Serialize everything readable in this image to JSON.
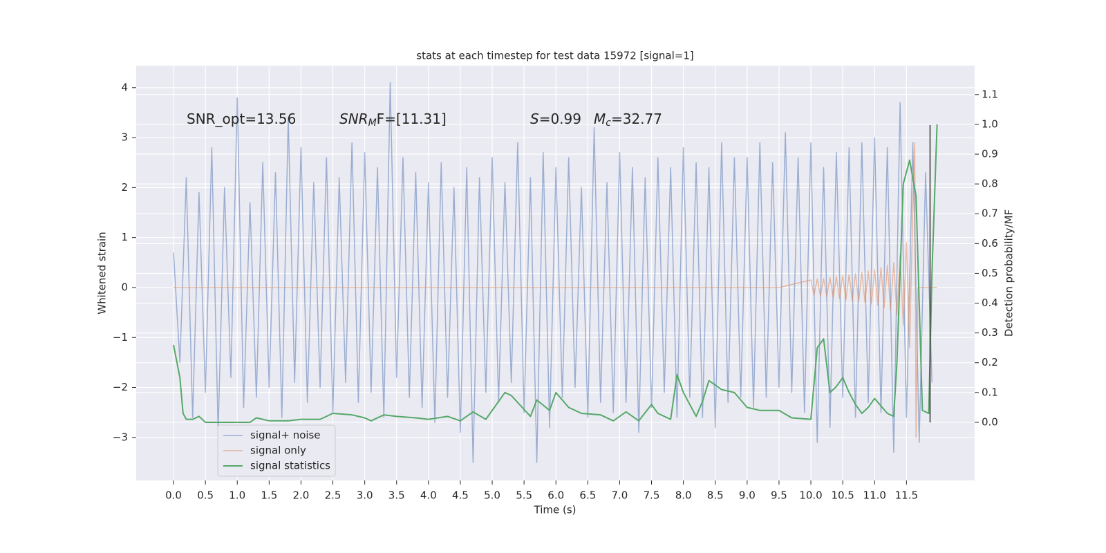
{
  "chart_data": {
    "type": "line",
    "title": "stats at each timestep for test data 15972 [signal=1]",
    "xlabel": "Time (s)",
    "ylabel": "Whitened strain",
    "y2label": "Detection probability/MF",
    "annotations": [
      {
        "text": "SNR_opt=13.56"
      },
      {
        "text": "SNR",
        "sub": "M",
        "after": "F=[11.31]"
      },
      {
        "text": "S",
        "after": "=0.99"
      },
      {
        "text": "M",
        "sub": "c",
        "after": "=32.77"
      }
    ],
    "xlim": [
      -0.586,
      12.57
    ],
    "ylim": [
      -3.86,
      4.44
    ],
    "y2lim": [
      -0.195,
      1.197
    ],
    "xticks": [
      {
        "value": 0,
        "label": "0.0"
      },
      0.5,
      {
        "value": 1,
        "label": "1.0"
      },
      1.5,
      {
        "value": 2,
        "label": "2.0"
      },
      2.5,
      {
        "value": 3,
        "label": "3.0"
      },
      3.5,
      {
        "value": 4,
        "label": "4.0"
      },
      4.5,
      {
        "value": 5,
        "label": "5.0"
      },
      5.5,
      {
        "value": 6,
        "label": "6.0"
      },
      6.5,
      {
        "value": 7,
        "label": "7.0"
      },
      7.5,
      {
        "value": 8,
        "label": "8.0"
      },
      8.5,
      {
        "value": 9,
        "label": "9.0"
      },
      9.5,
      {
        "value": 10,
        "label": "10.0"
      },
      10.5,
      {
        "value": 11,
        "label": "11.0"
      },
      11.5
    ],
    "yticks": [
      {
        "value": -3,
        "label": "−3"
      },
      {
        "value": -2,
        "label": "−2"
      },
      {
        "value": -1,
        "label": "−1"
      },
      0,
      1,
      2,
      3,
      4
    ],
    "y2ticks": [
      {
        "value": 0,
        "label": "0.0"
      },
      0.1,
      0.2,
      0.3,
      0.4,
      0.5,
      0.6,
      0.7,
      0.8,
      0.9,
      {
        "value": 1,
        "label": "1.0"
      },
      1.1
    ],
    "grid": true,
    "legend": "lower left",
    "series": [
      {
        "name": "signal+ noise",
        "color": "#4c72b0",
        "opacity": 0.5,
        "x": [
          0,
          0.1,
          0.2,
          0.3,
          0.4,
          0.5,
          0.6,
          0.7,
          0.8,
          0.9,
          1,
          1.1,
          1.2,
          1.3,
          1.4,
          1.5,
          1.6,
          1.7,
          1.8,
          1.9,
          2,
          2.1,
          2.2,
          2.3,
          2.4,
          2.5,
          2.6,
          2.7,
          2.8,
          2.9,
          3,
          3.1,
          3.2,
          3.3,
          3.4,
          3.5,
          3.6,
          3.7,
          3.8,
          3.9,
          4,
          4.1,
          4.2,
          4.3,
          4.4,
          4.5,
          4.6,
          4.7,
          4.8,
          4.9,
          5,
          5.1,
          5.2,
          5.3,
          5.4,
          5.5,
          5.6,
          5.7,
          5.8,
          5.9,
          6,
          6.1,
          6.2,
          6.3,
          6.4,
          6.5,
          6.6,
          6.7,
          6.8,
          6.9,
          7,
          7.1,
          7.2,
          7.3,
          7.4,
          7.5,
          7.6,
          7.7,
          7.8,
          7.9,
          8,
          8.1,
          8.2,
          8.3,
          8.4,
          8.5,
          8.6,
          8.7,
          8.8,
          8.9,
          9,
          9.1,
          9.2,
          9.3,
          9.4,
          9.5,
          9.6,
          9.7,
          9.8,
          9.9,
          10,
          10.1,
          10.2,
          10.3,
          10.4,
          10.5,
          10.6,
          10.7,
          10.8,
          10.9,
          11,
          11.1,
          11.2,
          11.3,
          11.4,
          11.5,
          11.6,
          11.7,
          11.8,
          11.9
        ],
        "values": [
          0.7,
          -1.5,
          2.2,
          -2.6,
          1.9,
          -2.1,
          2.8,
          -2.9,
          2.0,
          -1.8,
          3.8,
          -2.4,
          1.7,
          -2.2,
          2.5,
          -2.0,
          2.3,
          -2.6,
          3.4,
          -1.9,
          2.8,
          -2.3,
          2.1,
          -2.0,
          2.6,
          -2.5,
          2.2,
          -1.9,
          2.9,
          -2.3,
          2.7,
          -2.1,
          2.4,
          -2.6,
          4.1,
          -1.8,
          2.6,
          -2.2,
          2.3,
          -2.4,
          2.1,
          -2.7,
          2.5,
          -2.2,
          2.0,
          -2.9,
          2.4,
          -3.5,
          2.2,
          -2.1,
          2.6,
          -2.3,
          2.1,
          -1.9,
          2.9,
          -2.5,
          2.2,
          -3.5,
          2.7,
          -2.8,
          2.4,
          -2.2,
          2.6,
          -2.0,
          2.0,
          -2.6,
          3.2,
          -2.3,
          2.1,
          -2.5,
          2.7,
          -2.3,
          2.4,
          -2.9,
          2.2,
          -2.4,
          2.6,
          -2.1,
          2.4,
          -2.6,
          2.8,
          -2.2,
          2.5,
          -2.6,
          2.4,
          -2.8,
          2.9,
          -2.3,
          2.6,
          -2.2,
          2.6,
          -2.4,
          2.9,
          -2.2,
          2.5,
          -2.0,
          3.1,
          -2.1,
          2.6,
          -2.5,
          2.9,
          -3.1,
          2.4,
          -2.8,
          2.7,
          -2.2,
          2.8,
          -2.6,
          2.9,
          -2.3,
          3.0,
          -2.5,
          2.8,
          -3.3,
          3.7,
          -2.6,
          2.9,
          -3.1,
          2.3,
          -1.9
        ]
      },
      {
        "name": "signal only",
        "color": "#dd8452",
        "opacity": 0.5,
        "x": [
          0,
          9.5,
          10,
          10.05,
          10.1,
          10.15,
          10.2,
          10.25,
          10.3,
          10.35,
          10.4,
          10.45,
          10.5,
          10.55,
          10.6,
          10.65,
          10.7,
          10.75,
          10.8,
          10.85,
          10.9,
          10.95,
          11,
          11.05,
          11.1,
          11.15,
          11.2,
          11.25,
          11.3,
          11.35,
          11.4,
          11.45,
          11.5,
          11.55,
          11.6,
          11.63,
          11.65,
          11.68,
          11.98
        ],
        "values": [
          0,
          0,
          0.15,
          -0.15,
          0.17,
          -0.17,
          0.18,
          -0.18,
          0.2,
          -0.2,
          0.22,
          -0.22,
          0.24,
          -0.24,
          0.26,
          -0.26,
          0.28,
          -0.28,
          0.3,
          -0.3,
          0.33,
          -0.33,
          0.36,
          -0.36,
          0.4,
          -0.4,
          0.45,
          -0.45,
          0.5,
          -0.55,
          0.65,
          -0.75,
          0.9,
          -1.2,
          1.6,
          2.9,
          -3.0,
          0,
          0
        ]
      },
      {
        "name": "signal statistics",
        "color": "#55a868",
        "opacity": 1,
        "axis": "y2",
        "x": [
          0,
          0.1,
          0.15,
          0.2,
          0.3,
          0.4,
          0.5,
          0.7,
          1,
          1.2,
          1.3,
          1.5,
          1.8,
          2,
          2.3,
          2.5,
          2.8,
          3,
          3.1,
          3.3,
          3.5,
          3.8,
          4,
          4.3,
          4.5,
          4.7,
          4.9,
          5.2,
          5.3,
          5.6,
          5.7,
          5.9,
          6,
          6.2,
          6.4,
          6.7,
          6.9,
          7.1,
          7.3,
          7.5,
          7.6,
          7.8,
          7.9,
          8,
          8.2,
          8.3,
          8.4,
          8.6,
          8.8,
          9,
          9.2,
          9.5,
          9.7,
          10,
          10.1,
          10.2,
          10.3,
          10.4,
          10.5,
          10.6,
          10.7,
          10.8,
          10.9,
          11,
          11.2,
          11.3,
          11.35,
          11.45,
          11.55,
          11.65,
          11.75,
          11.85,
          11.9,
          11.98
        ],
        "values": [
          0.26,
          0.15,
          0.03,
          0.01,
          0.01,
          0.02,
          0,
          0,
          0,
          0,
          0.015,
          0.005,
          0.005,
          0.01,
          0.01,
          0.03,
          0.025,
          0.015,
          0.005,
          0.025,
          0.02,
          0.015,
          0.01,
          0.02,
          0.005,
          0.035,
          0.01,
          0.1,
          0.09,
          0.02,
          0.075,
          0.04,
          0.1,
          0.05,
          0.03,
          0.025,
          0.005,
          0.035,
          0.005,
          0.06,
          0.03,
          0.01,
          0.16,
          0.1,
          0.02,
          0.07,
          0.14,
          0.11,
          0.1,
          0.05,
          0.04,
          0.04,
          0.015,
          0.01,
          0.25,
          0.28,
          0.1,
          0.12,
          0.15,
          0.1,
          0.06,
          0.03,
          0.05,
          0.08,
          0.03,
          0.02,
          0.2,
          0.8,
          0.88,
          0.76,
          0.04,
          0.03,
          0.5,
          1.0
        ]
      }
    ],
    "markers": [
      {
        "x": 11.87,
        "ylim": [
          -2.7,
          3.25
        ],
        "color": "#333333"
      }
    ]
  }
}
